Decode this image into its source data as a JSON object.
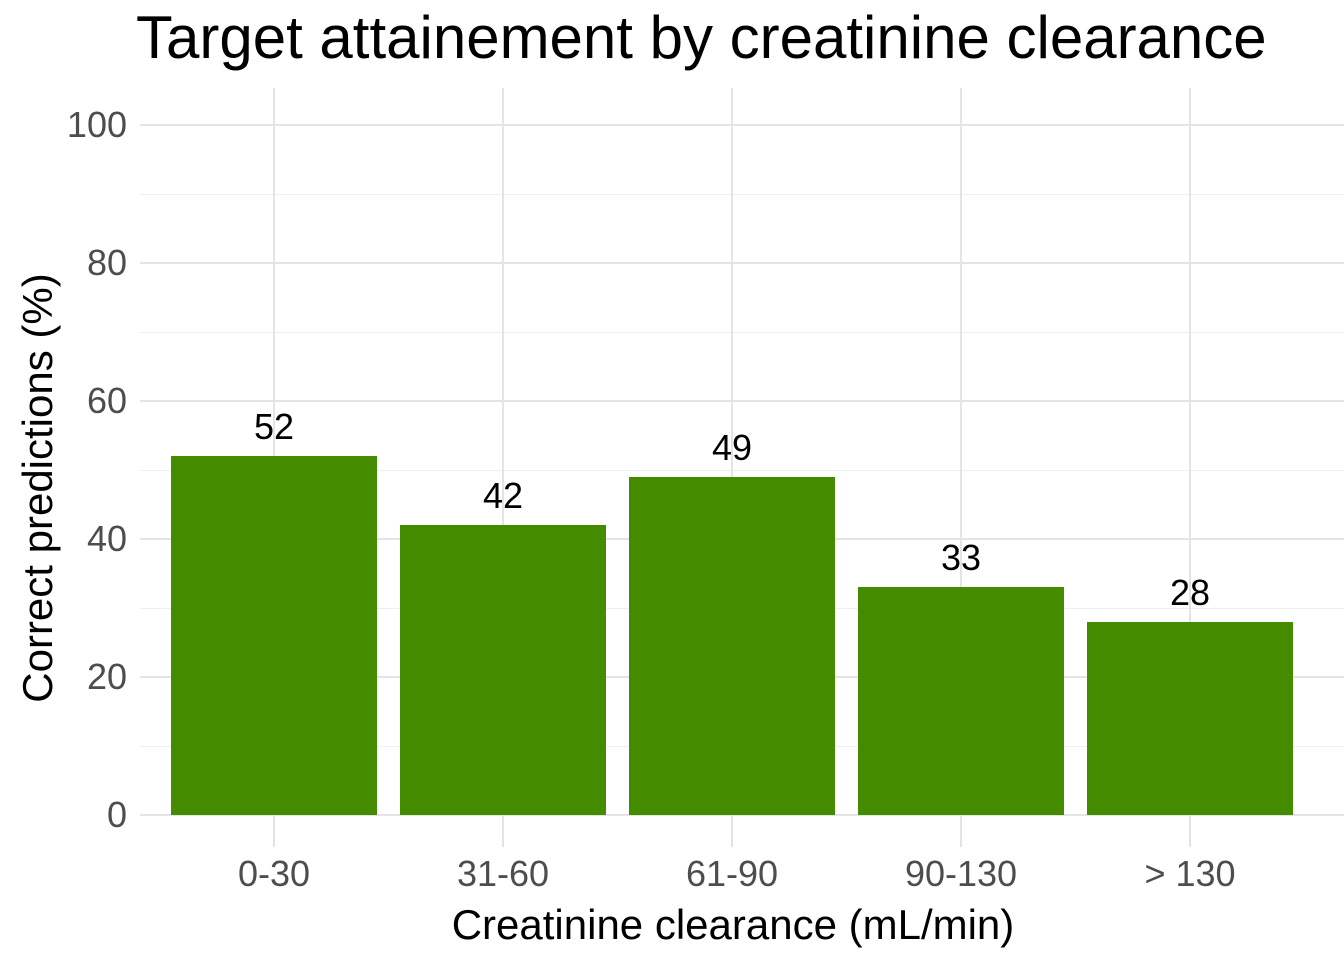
{
  "title": "Target attainement by creatinine clearance",
  "colors": {
    "bar": "#458B00",
    "grid_major": "#e4e4e4",
    "grid_minor": "#efefef",
    "tick_text": "#4d4d4d",
    "title_text": "#000000",
    "background": "#ffffff"
  },
  "chart_data": {
    "type": "bar",
    "title": "Target attainement by creatinine clearance",
    "xlabel": "Creatinine clearance (mL/min)",
    "ylabel": "Correct predictions (%)",
    "categories": [
      "0-30",
      "31-60",
      "61-90",
      "90-130",
      "> 130"
    ],
    "values": [
      52,
      42,
      49,
      33,
      28
    ],
    "bar_labels": [
      "52",
      "42",
      "49",
      "33",
      "28"
    ],
    "ylim": [
      0,
      100
    ],
    "yticks": [
      0,
      20,
      40,
      60,
      80,
      100
    ],
    "ytick_labels": [
      "0",
      "20",
      "40",
      "60",
      "80",
      "100"
    ],
    "yticks_minor": [
      10,
      30,
      50,
      70,
      90
    ],
    "grid": "horizontal major+minor, vertical major at category centers",
    "legend": "none",
    "bar_color": "#458B00",
    "orientation": "vertical"
  }
}
